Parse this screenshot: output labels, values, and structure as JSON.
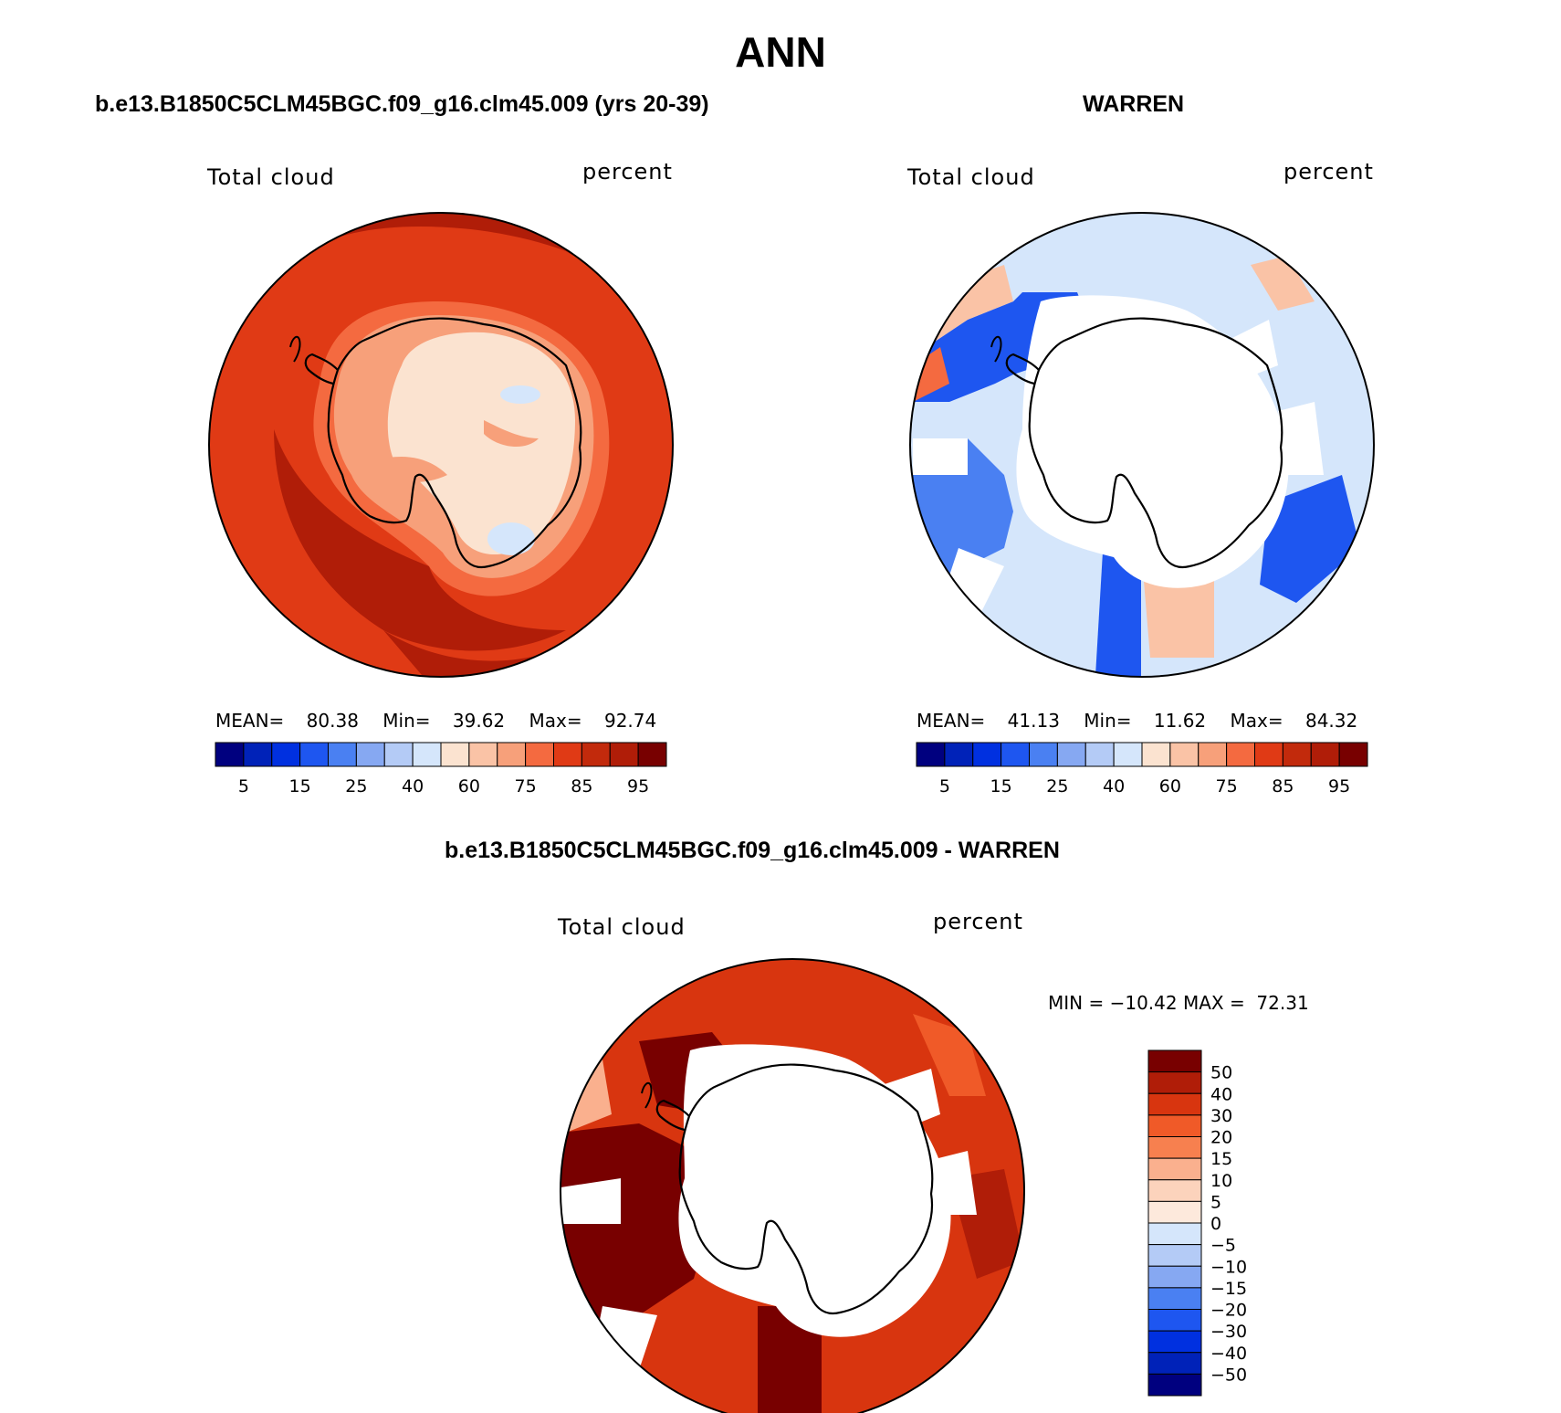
{
  "figure": {
    "title": "ANN"
  },
  "panels": [
    {
      "id": "model",
      "case_title": "b.e13.B1850C5CLM45BGC.f09_g16.clm45.009 (yrs 20-39)",
      "variable_label": "Total cloud",
      "units_label": "percent",
      "stats": {
        "mean_label": "MEAN=",
        "mean": "80.38",
        "min_label": "Min=",
        "min": "39.62",
        "max_label": "Max=",
        "max": "92.74"
      },
      "colorbar": {
        "orientation": "horizontal",
        "tick_labels": [
          "5",
          "15",
          "25",
          "40",
          "60",
          "75",
          "85",
          "95"
        ]
      }
    },
    {
      "id": "obs",
      "case_title": "WARREN",
      "variable_label": "Total cloud",
      "units_label": "percent",
      "stats": {
        "mean_label": "MEAN=",
        "mean": "41.13",
        "min_label": "Min=",
        "min": "11.62",
        "max_label": "Max=",
        "max": "84.32"
      },
      "colorbar": {
        "orientation": "horizontal",
        "tick_labels": [
          "5",
          "15",
          "25",
          "40",
          "60",
          "75",
          "85",
          "95"
        ]
      }
    },
    {
      "id": "diff",
      "case_title": "b.e13.B1850C5CLM45BGC.f09_g16.clm45.009 - WARREN",
      "variable_label": "Total cloud",
      "units_label": "percent",
      "minmax_text": "MIN = −10.42 MAX =  72.31",
      "colorbar": {
        "orientation": "vertical",
        "tick_labels": [
          "50",
          "40",
          "30",
          "20",
          "15",
          "10",
          "5",
          "0",
          "−5",
          "−10",
          "−15",
          "−20",
          "−30",
          "−40",
          "−50"
        ]
      }
    }
  ],
  "colors": {
    "abs_palette": [
      "#00007f",
      "#0022b8",
      "#0030e0",
      "#1e56f0",
      "#4a80f2",
      "#86a8f2",
      "#b4cbf6",
      "#d5e6fb",
      "#fbe3d0",
      "#fac3a6",
      "#f7a07a",
      "#f46a40",
      "#e03a15",
      "#c22a0c",
      "#b01d08",
      "#780000"
    ],
    "diff_palette": [
      "#780000",
      "#b01d08",
      "#d8350f",
      "#f05a28",
      "#f7804f",
      "#fab08e",
      "#fcd3bc",
      "#fde9dc",
      "#d5e6fb",
      "#b4cbf6",
      "#86a8f2",
      "#4a80f2",
      "#1e56f0",
      "#0030e0",
      "#0022b8",
      "#00007f"
    ],
    "coastline": "#000000",
    "missing": "#ffffff"
  }
}
